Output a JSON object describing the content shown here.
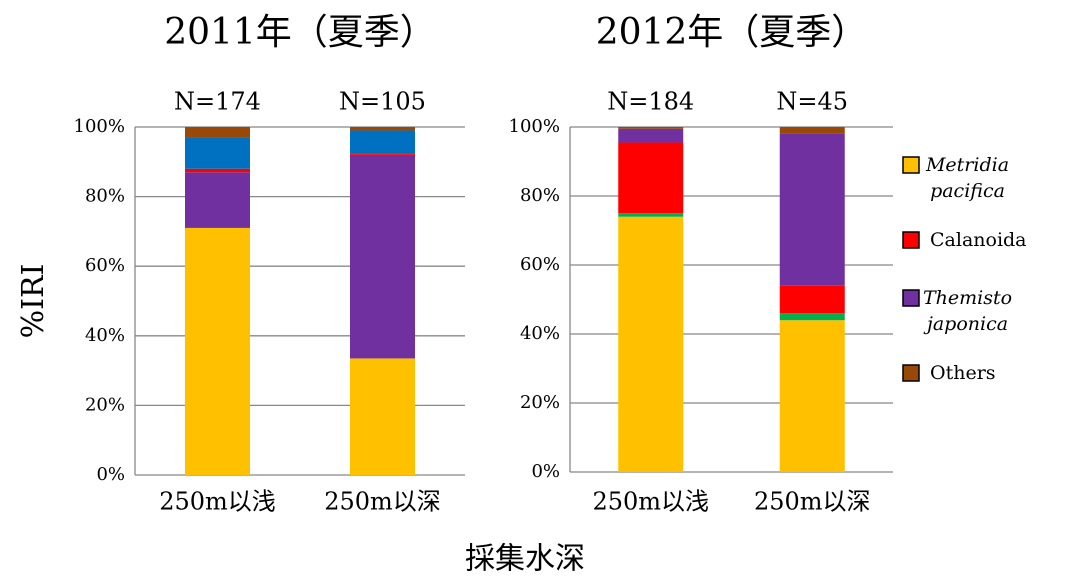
{
  "chart_data": [
    {
      "type": "stacked_bar",
      "title": "2011年（夏季）",
      "ylabel": "%IRI",
      "xlabel": "採集水深",
      "categories": [
        "250m以浅",
        "250m以深"
      ],
      "bar_labels": [
        "N=174",
        "N=105"
      ],
      "ylim": [
        0,
        100
      ],
      "yticks": [
        {
          "value": 0,
          "label": "0%"
        },
        {
          "value": 20,
          "label": "20%"
        },
        {
          "value": 40,
          "label": "40%"
        },
        {
          "value": 60,
          "label": "60%"
        },
        {
          "value": 80,
          "label": "80%"
        },
        {
          "value": 100,
          "label": "100%"
        }
      ],
      "grid": true,
      "series": [
        {
          "color": "#ffc000",
          "values": [
            71,
            33.5
          ]
        },
        {
          "color": "#7030a0",
          "values": [
            16,
            58.5
          ]
        },
        {
          "color": "#ff0000",
          "values": [
            1,
            0.5
          ]
        },
        {
          "color": "#0070c0",
          "values": [
            9,
            6.5
          ]
        },
        {
          "color": "#984807",
          "values": [
            3,
            1
          ]
        }
      ]
    },
    {
      "type": "stacked_bar",
      "title": "2012年（夏季）",
      "categories": [
        "250m以浅",
        "250m以深"
      ],
      "bar_labels": [
        "N=184",
        "N=45"
      ],
      "ylim": [
        0,
        100
      ],
      "yticks": [
        {
          "value": 0,
          "label": "0%"
        },
        {
          "value": 20,
          "label": "20%"
        },
        {
          "value": 40,
          "label": "40%"
        },
        {
          "value": 60,
          "label": "60%"
        },
        {
          "value": 80,
          "label": "80%"
        },
        {
          "value": 100,
          "label": "100%"
        }
      ],
      "grid": true,
      "legend": "right",
      "series": [
        {
          "name": "Metridia pacifica",
          "italic": true,
          "color": "#ffc000",
          "values": [
            74,
            44
          ]
        },
        {
          "color": "#00b050",
          "values": [
            1,
            2
          ]
        },
        {
          "name": "Calanoida",
          "italic": false,
          "color": "#ff0000",
          "values": [
            20.5,
            8
          ]
        },
        {
          "name": "Themisto japonica",
          "italic": true,
          "color": "#7030a0",
          "values": [
            4,
            44
          ]
        },
        {
          "name": "Others",
          "italic": false,
          "color": "#984807",
          "values": [
            0.5,
            2
          ]
        }
      ]
    }
  ]
}
